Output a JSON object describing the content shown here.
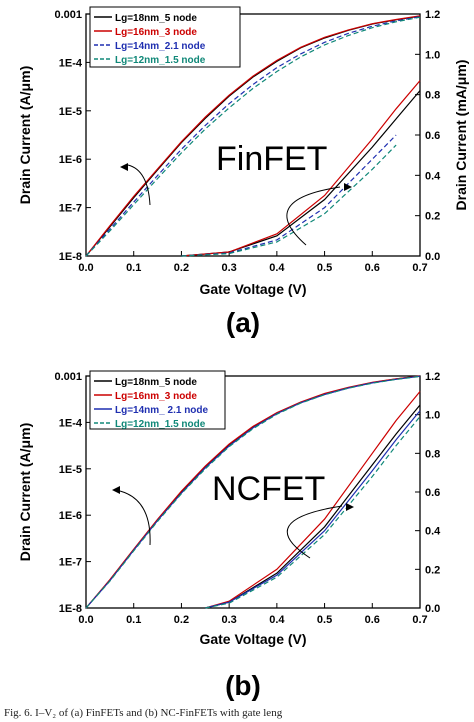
{
  "chart_data": [
    {
      "type": "line",
      "panel_label": "(a)",
      "annotation": "FinFET",
      "xlabel": "Gate Voltage (V)",
      "ylabel_left": "Drain Current (A/μm)",
      "ylabel_right": "Drain Current (mA/μm)",
      "xlim": [
        0.0,
        0.7
      ],
      "ylim_left": [
        1e-08,
        0.001
      ],
      "ylim_right": [
        0.0,
        1.2
      ],
      "left_scale": "log",
      "x_ticks": [
        "0.0",
        "0.1",
        "0.2",
        "0.3",
        "0.4",
        "0.5",
        "0.6",
        "0.7"
      ],
      "y_left_ticks": [
        "0.001",
        "1E-4",
        "1E-5",
        "1E-6",
        "1E-7",
        "1E-8"
      ],
      "y_right_ticks": [
        "0.0",
        "0.2",
        "0.4",
        "0.6",
        "0.8",
        "1.0",
        "1.2"
      ],
      "legend_position": "top-left",
      "series": [
        {
          "name": "Lg=18nm_5 node",
          "color": "#000000",
          "dash": "solid",
          "log_points": [
            [
              0,
              1e-08
            ],
            [
              0.05,
              4e-08
            ],
            [
              0.1,
              1.6e-07
            ],
            [
              0.15,
              6e-07
            ],
            [
              0.2,
              2.2e-06
            ],
            [
              0.25,
              7e-06
            ],
            [
              0.3,
              2e-05
            ],
            [
              0.35,
              5e-05
            ],
            [
              0.4,
              0.000105
            ],
            [
              0.45,
              0.0002
            ],
            [
              0.5,
              0.00032
            ],
            [
              0.55,
              0.00046
            ],
            [
              0.6,
              0.00062
            ],
            [
              0.65,
              0.00076
            ],
            [
              0.7,
              0.0009
            ]
          ],
          "linear_points": [
            [
              0.2,
              0
            ],
            [
              0.3,
              0.02
            ],
            [
              0.4,
              0.1
            ],
            [
              0.5,
              0.28
            ],
            [
              0.6,
              0.54
            ],
            [
              0.65,
              0.68
            ],
            [
              0.7,
              0.82
            ]
          ]
        },
        {
          "name": "Lg=16nm_3 node",
          "color": "#cc0000",
          "dash": "solid",
          "log_points": [
            [
              0,
              1e-08
            ],
            [
              0.05,
              4.2e-08
            ],
            [
              0.1,
              1.7e-07
            ],
            [
              0.15,
              6.3e-07
            ],
            [
              0.2,
              2.3e-06
            ],
            [
              0.25,
              7.4e-06
            ],
            [
              0.3,
              2.1e-05
            ],
            [
              0.35,
              5.2e-05
            ],
            [
              0.4,
              0.00011
            ],
            [
              0.45,
              0.000205
            ],
            [
              0.5,
              0.00033
            ],
            [
              0.55,
              0.00047
            ],
            [
              0.6,
              0.00063
            ],
            [
              0.65,
              0.00077
            ],
            [
              0.7,
              0.00092
            ]
          ],
          "linear_points": [
            [
              0.2,
              0
            ],
            [
              0.3,
              0.02
            ],
            [
              0.4,
              0.11
            ],
            [
              0.5,
              0.3
            ],
            [
              0.6,
              0.58
            ],
            [
              0.65,
              0.73
            ],
            [
              0.7,
              0.87
            ]
          ]
        },
        {
          "name": "Lg=14nm_2.1 node",
          "color": "#1f2fb0",
          "dash": "dashed",
          "log_points": [
            [
              0,
              1e-08
            ],
            [
              0.05,
              3.6e-08
            ],
            [
              0.1,
              1.3e-07
            ],
            [
              0.15,
              4.6e-07
            ],
            [
              0.2,
              1.6e-06
            ],
            [
              0.25,
              5e-06
            ],
            [
              0.3,
              1.4e-05
            ],
            [
              0.35,
              3.5e-05
            ],
            [
              0.4,
              7.8e-05
            ],
            [
              0.45,
              0.00015
            ],
            [
              0.5,
              0.00026
            ],
            [
              0.55,
              0.0004
            ],
            [
              0.6,
              0.00056
            ],
            [
              0.65,
              0.00072
            ],
            [
              0.7,
              0.00088
            ]
          ],
          "linear_points": [
            [
              0.2,
              0
            ],
            [
              0.3,
              0.015
            ],
            [
              0.4,
              0.08
            ],
            [
              0.5,
              0.24
            ],
            [
              0.6,
              0.48
            ],
            [
              0.65,
              0.6
            ]
          ]
        },
        {
          "name": "Lg=12nm_1.5 node",
          "color": "#108878",
          "dash": "dashed",
          "log_points": [
            [
              0,
              1e-08
            ],
            [
              0.05,
              3.3e-08
            ],
            [
              0.1,
              1.15e-07
            ],
            [
              0.15,
              4e-07
            ],
            [
              0.2,
              1.35e-06
            ],
            [
              0.25,
              4.2e-06
            ],
            [
              0.3,
              1.15e-05
            ],
            [
              0.35,
              2.9e-05
            ],
            [
              0.4,
              6.5e-05
            ],
            [
              0.45,
              0.00013
            ],
            [
              0.5,
              0.00023
            ],
            [
              0.55,
              0.00036
            ],
            [
              0.6,
              0.00052
            ],
            [
              0.65,
              0.00069
            ],
            [
              0.7,
              0.00086
            ]
          ],
          "linear_points": [
            [
              0.2,
              0
            ],
            [
              0.3,
              0.012
            ],
            [
              0.4,
              0.07
            ],
            [
              0.5,
              0.21
            ],
            [
              0.6,
              0.43
            ],
            [
              0.65,
              0.55
            ]
          ]
        }
      ]
    },
    {
      "type": "line",
      "panel_label": "(b)",
      "annotation": "NCFET",
      "xlabel": "Gate Voltage (V)",
      "ylabel_left": "Drain Current (A/μm)",
      "ylabel_right": "",
      "xlim": [
        0.0,
        0.7
      ],
      "ylim_left": [
        1e-08,
        0.001
      ],
      "ylim_right": [
        0.0,
        1.2
      ],
      "left_scale": "log",
      "x_ticks": [
        "0.0",
        "0.1",
        "0.2",
        "0.3",
        "0.4",
        "0.5",
        "0.6",
        "0.7"
      ],
      "y_left_ticks": [
        "0.001",
        "1E-4",
        "1E-5",
        "1E-6",
        "1E-7",
        "1E-8"
      ],
      "y_right_ticks": [
        "0.0",
        "0.2",
        "0.4",
        "0.6",
        "0.8",
        "1.0",
        "1.2"
      ],
      "legend_position": "top-left",
      "series": [
        {
          "name": "Lg=18nm_5 node",
          "color": "#000000",
          "dash": "solid",
          "log_points": [
            [
              0,
              1e-08
            ],
            [
              0.05,
              4e-08
            ],
            [
              0.1,
              1.8e-07
            ],
            [
              0.15,
              8e-07
            ],
            [
              0.2,
              3.2e-06
            ],
            [
              0.25,
              1.1e-05
            ],
            [
              0.3,
              3.3e-05
            ],
            [
              0.35,
              8e-05
            ],
            [
              0.4,
              0.00016
            ],
            [
              0.45,
              0.00027
            ],
            [
              0.5,
              0.00041
            ],
            [
              0.55,
              0.00056
            ],
            [
              0.6,
              0.00072
            ],
            [
              0.65,
              0.00086
            ],
            [
              0.7,
              0.001
            ]
          ],
          "linear_points": [
            [
              0.25,
              0
            ],
            [
              0.3,
              0.03
            ],
            [
              0.4,
              0.18
            ],
            [
              0.5,
              0.42
            ],
            [
              0.6,
              0.74
            ],
            [
              0.65,
              0.9
            ],
            [
              0.7,
              1.05
            ]
          ]
        },
        {
          "name": "Lg=16nm_3 node",
          "color": "#cc0000",
          "dash": "solid",
          "log_points": [
            [
              0,
              1e-08
            ],
            [
              0.05,
              4.1e-08
            ],
            [
              0.1,
              1.85e-07
            ],
            [
              0.15,
              8.2e-07
            ],
            [
              0.2,
              3.3e-06
            ],
            [
              0.25,
              1.15e-05
            ],
            [
              0.3,
              3.4e-05
            ],
            [
              0.35,
              8.2e-05
            ],
            [
              0.4,
              0.000162
            ],
            [
              0.45,
              0.000275
            ],
            [
              0.5,
              0.00042
            ],
            [
              0.55,
              0.00057
            ],
            [
              0.6,
              0.00073
            ],
            [
              0.65,
              0.00087
            ],
            [
              0.7,
              0.001
            ]
          ],
          "linear_points": [
            [
              0.25,
              0
            ],
            [
              0.3,
              0.035
            ],
            [
              0.4,
              0.2
            ],
            [
              0.5,
              0.46
            ],
            [
              0.6,
              0.8
            ],
            [
              0.65,
              0.97
            ],
            [
              0.7,
              1.12
            ]
          ]
        },
        {
          "name": "Lg=14nm_ 2.1 node",
          "color": "#1f2fb0",
          "dash": "solid",
          "log_points": [
            [
              0,
              1e-08
            ],
            [
              0.05,
              3.9e-08
            ],
            [
              0.1,
              1.75e-07
            ],
            [
              0.15,
              7.7e-07
            ],
            [
              0.2,
              3e-06
            ],
            [
              0.25,
              1.05e-05
            ],
            [
              0.3,
              3.1e-05
            ],
            [
              0.35,
              7.6e-05
            ],
            [
              0.4,
              0.000155
            ],
            [
              0.45,
              0.000265
            ],
            [
              0.5,
              0.0004
            ],
            [
              0.55,
              0.00055
            ],
            [
              0.6,
              0.00071
            ],
            [
              0.65,
              0.00085
            ],
            [
              0.7,
              0.00099
            ]
          ],
          "linear_points": [
            [
              0.25,
              0
            ],
            [
              0.3,
              0.03
            ],
            [
              0.4,
              0.17
            ],
            [
              0.5,
              0.4
            ],
            [
              0.6,
              0.71
            ],
            [
              0.65,
              0.87
            ],
            [
              0.7,
              1.02
            ]
          ]
        },
        {
          "name": "Lg=12nm_1.5 node",
          "color": "#108878",
          "dash": "dashed",
          "log_points": [
            [
              0,
              1e-08
            ],
            [
              0.05,
              3.8e-08
            ],
            [
              0.1,
              1.7e-07
            ],
            [
              0.15,
              7.4e-07
            ],
            [
              0.2,
              2.9e-06
            ],
            [
              0.25,
              1e-05
            ],
            [
              0.3,
              3e-05
            ],
            [
              0.35,
              7.3e-05
            ],
            [
              0.4,
              0.00015
            ],
            [
              0.45,
              0.00026
            ],
            [
              0.5,
              0.000395
            ],
            [
              0.55,
              0.000545
            ],
            [
              0.6,
              0.0007
            ],
            [
              0.65,
              0.000845
            ],
            [
              0.7,
              0.00098
            ]
          ],
          "linear_points": [
            [
              0.25,
              0
            ],
            [
              0.3,
              0.025
            ],
            [
              0.4,
              0.16
            ],
            [
              0.5,
              0.38
            ],
            [
              0.6,
              0.68
            ],
            [
              0.65,
              0.84
            ],
            [
              0.7,
              0.99
            ]
          ]
        }
      ]
    }
  ],
  "caption": "Fig. 6. I–V₂ of (a) FinFETs and (b) NC-FinFETs with gate leng"
}
